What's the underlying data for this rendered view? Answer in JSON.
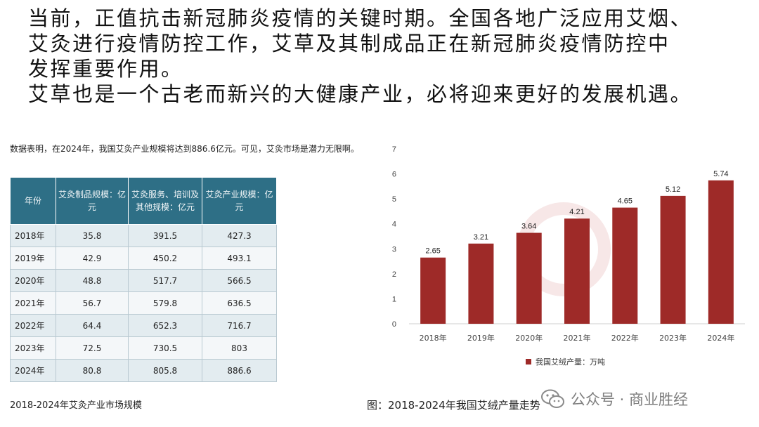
{
  "intro": {
    "lines": [
      "当前，正值抗击新冠肺炎疫情的关键时期。全国各地广泛应用艾烟、",
      "艾灸进行疫情防控工作，艾草及其制成品正在新冠肺炎疫情防控中",
      "发挥重要作用。",
      "艾草也是一个古老而新兴的大健康产业，必将迎来更好的发展机遇。"
    ]
  },
  "note": "数据表明，在2024年，我国艾灸产业规模将达到886.6亿元。可见，艾灸市场是潜力无限啊。",
  "table": {
    "headers": [
      "年份",
      "艾灸制品规模：亿元",
      "艾灸服务、培训及其他规模：亿元",
      "艾灸产业规模：亿元"
    ],
    "rows": [
      [
        "2018年",
        "35.8",
        "391.5",
        "427.3"
      ],
      [
        "2019年",
        "42.9",
        "450.2",
        "493.1"
      ],
      [
        "2020年",
        "48.8",
        "517.7",
        "566.5"
      ],
      [
        "2021年",
        "56.7",
        "579.8",
        "636.5"
      ],
      [
        "2022年",
        "64.4",
        "652.3",
        "716.7"
      ],
      [
        "2023年",
        "72.5",
        "730.5",
        "803"
      ],
      [
        "2024年",
        "80.8",
        "805.8",
        "886.6"
      ]
    ],
    "caption": "2018-2024年艾灸产业市场规模"
  },
  "chart_data": {
    "type": "bar",
    "categories": [
      "2018年",
      "2019年",
      "2020年",
      "2021年",
      "2022年",
      "2023年",
      "2024年"
    ],
    "series": [
      {
        "name": "我国艾绒产量：万吨",
        "values": [
          2.65,
          3.21,
          3.64,
          4.21,
          4.65,
          5.12,
          5.74
        ]
      }
    ],
    "ylim": [
      0,
      7
    ],
    "yticks": [
      0,
      1,
      2,
      3,
      4,
      5,
      6,
      7
    ],
    "grid": false,
    "legend": "bottom",
    "bar_color": "#9e2a28",
    "title": "",
    "xlabel": "",
    "ylabel": ""
  },
  "chart_caption": "图：2018-2024年我国艾绒产量走势",
  "watermark": {
    "text": "公众号 · 商业胜经",
    "icon": "wechat-icon"
  }
}
